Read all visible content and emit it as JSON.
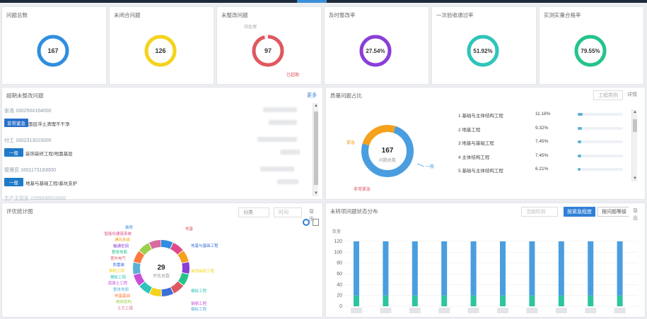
{
  "kpis": [
    {
      "title": "问题总数",
      "value": "167",
      "color": "#2f8ee0",
      "fraction": 1.0
    },
    {
      "title": "未闭合问题",
      "value": "126",
      "color": "#f5d31c",
      "fraction": 1.0
    },
    {
      "title": "未整改问题",
      "value": "97",
      "color": "#e0585f",
      "fraction": 0.96,
      "legend_a": "待处理",
      "legend_b": "已超期"
    },
    {
      "title": "及时整改率",
      "value": "27.54%",
      "color": "#8a3fd8",
      "fraction": 1.0
    },
    {
      "title": "一次验收通过率",
      "value": "51.92%",
      "color": "#2ec4b9",
      "fraction": 1.0
    },
    {
      "title": "实测实量合格率",
      "value": "79.55%",
      "color": "#24c48a",
      "fraction": 1.0
    }
  ],
  "overdue": {
    "title": "超期未整改问题",
    "more": "更多",
    "items": [
      {
        "name": "张浩 1602504164000",
        "tag": "非常紧急",
        "tag_type": "urgent",
        "desc": "面层浮土清理不干净"
      },
      {
        "name": "付工 1602313015000",
        "tag": "一般",
        "tag_type": "normal",
        "desc": "装饰装修工程/地面基层"
      },
      {
        "name": "管理员 1601173183000",
        "tag": "一般",
        "tag_type": "normal",
        "desc": "地基与基础工程/基坑支护"
      },
      {
        "name": "生产主管张 1599838503000",
        "tag": "",
        "tag_type": "normal",
        "desc": ""
      }
    ]
  },
  "quality": {
    "title": "质量问题占比",
    "dropdown": "工程类别",
    "detail": "详情",
    "donut_value": "167",
    "donut_label": "问题总数",
    "labels": {
      "urgent": "紧急",
      "very_urgent": "非常紧急",
      "normal": "一般"
    },
    "rows": [
      {
        "label": "1 基础与主体结构工程",
        "pct": "11.18%",
        "value": 11.18
      },
      {
        "label": "2 地基工程",
        "pct": "9.32%",
        "value": 9.32
      },
      {
        "label": "3 地基与基础工程",
        "pct": "7.45%",
        "value": 7.45
      },
      {
        "label": "4 主体结构工程",
        "pct": "7.45%",
        "value": 7.45
      },
      {
        "label": "5 基础与主体结构工程",
        "pct": "6.21%",
        "value": 6.21
      }
    ]
  },
  "eval": {
    "title": "评优统计图",
    "filter_a": "分类",
    "filter_b": "时间",
    "export": "导出",
    "donut_value": "29",
    "donut_label": "评优总数",
    "labels_left": [
      "装修",
      "智能化建造系统",
      "通风系统",
      "暖通空调",
      "整体地面",
      "室外电气",
      "防雷装",
      "钢筋工程",
      "模板工程",
      "混凝土工程",
      "整体地面",
      "地基基础",
      "砌体结构",
      "土方工程"
    ],
    "labels_right": [
      "地基",
      "地基与基础工程",
      "装饰装修工程",
      "模板工程",
      "钢筋工程",
      "模板工程"
    ]
  },
  "unclosed": {
    "title": "未转项问题状态分布",
    "dropdown": "当前阶段",
    "btn_a": "按紧急程度",
    "btn_b": "按问题等级",
    "export": "导出",
    "y_unit": "数量",
    "yticks": [
      "120",
      "100",
      "80",
      "60",
      "40",
      "20",
      "0"
    ]
  },
  "chart_data": {
    "type": "bar",
    "categories": [
      "",
      "",
      "",
      "",
      "",
      "",
      "",
      "",
      "",
      ""
    ],
    "series": [
      {
        "values": [
          20,
          20,
          20,
          20,
          20,
          20,
          20,
          20,
          20,
          20
        ],
        "color": "#2ec4a0"
      },
      {
        "values": [
          100,
          100,
          100,
          100,
          100,
          100,
          100,
          100,
          100,
          100
        ],
        "color": "#4a9ee0"
      }
    ],
    "ylim": [
      0,
      120
    ],
    "ylabel": "数量"
  },
  "colors": {
    "blue": "#2f8ee0",
    "orange": "#f5a11c",
    "teal": "#2ec4a0"
  }
}
